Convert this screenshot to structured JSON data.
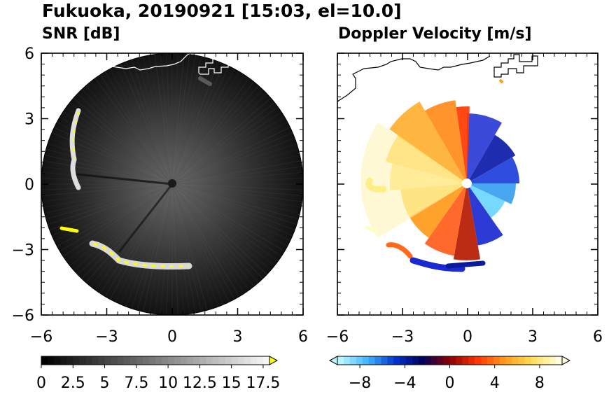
{
  "figure": {
    "title": "Fukuoka, 20190921 [15:03, el=10.0]"
  },
  "chart_data": [
    {
      "type": "heatmap",
      "panel_title": "SNR [dB]",
      "x_ticks": [
        "−6",
        "−3",
        "0",
        "3",
        "6"
      ],
      "y_ticks": [
        "6",
        "3",
        "0",
        "−3",
        "−6"
      ],
      "xlim": [
        -6,
        6
      ],
      "ylim": [
        -6,
        6
      ],
      "data_extent_radius": 6,
      "colorbar": {
        "ticks": [
          "0",
          "2.5",
          "5",
          "7.5",
          "10",
          "12.5",
          "15",
          "17.5"
        ],
        "range": [
          0,
          18
        ],
        "extend": "max",
        "colors": [
          "#000000",
          "#ffffff",
          "#ffff00"
        ]
      }
    },
    {
      "type": "heatmap",
      "panel_title": "Doppler Velocity [m/s]",
      "x_ticks": [
        "−6",
        "−3",
        "0",
        "3",
        "6"
      ],
      "xlim": [
        -6,
        6
      ],
      "ylim": [
        -6,
        6
      ],
      "colorbar": {
        "ticks": [
          "−8",
          "−4",
          "0",
          "4",
          "8"
        ],
        "range": [
          -10,
          10
        ],
        "extend": "both",
        "colors": [
          "#b8f6ff",
          "#3fb3ff",
          "#0033cc",
          "#00005a",
          "#8a0000",
          "#ff3300",
          "#ff9a1a",
          "#ffdd55",
          "#ffffdd"
        ]
      }
    }
  ]
}
